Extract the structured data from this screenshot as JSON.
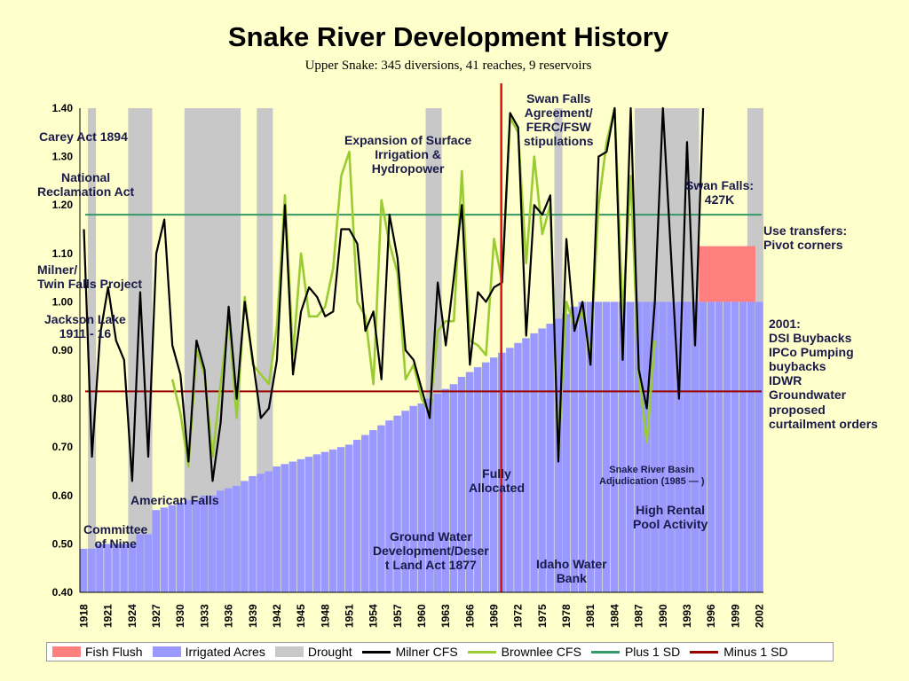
{
  "title": "Snake River Development History",
  "subtitle": "Upper Snake:  345 diversions, 41 reaches, 9 reservoirs",
  "colors": {
    "fish_flush": "#ff7f7f",
    "irrigated": "#9999ff",
    "drought": "#c8c8c8",
    "milner": "#000000",
    "brownlee": "#99cc33",
    "plus1sd": "#339966",
    "minus1sd": "#990000",
    "marker_1970": "#e01010",
    "annotation": "#1a1a4a"
  },
  "annotations": {
    "carey": "Carey Act 1894",
    "national": "National\nReclamation Act",
    "milner": "Milner/\nTwin Falls Project",
    "jackson": "Jackson Lake\n1911 - 16",
    "american": "American Falls",
    "committee": "Committee\nof Nine",
    "expansion": "Expansion of Surface\nIrrigation &\nHydropower",
    "groundwater": "Ground Water\nDevelopment/Deser\nt Land Act 1877",
    "fully": "Fully\nAllocated",
    "swanfalls_agreement": "Swan Falls\nAgreement/\nFERC/FSW\nstipulations",
    "swanfalls": "Swan Falls:\n427K",
    "use_transfers": "Use transfers:\nPivot corners",
    "y2001": "2001:\nDSI Buybacks\nIPCo Pumping\nbuybacks\nIDWR\nGroundwater\nproposed\ncurtailment orders",
    "srba": "Snake River Basin\nAdjudication (1985 — )",
    "rental": "High Rental\nPool Activity",
    "idaho_bank": "Idaho Water\nBank"
  },
  "legend": [
    {
      "label": "Fish Flush",
      "kind": "box",
      "color": "#ff7f7f"
    },
    {
      "label": "Irrigated Acres",
      "kind": "box",
      "color": "#9999ff"
    },
    {
      "label": "Drought",
      "kind": "box",
      "color": "#c8c8c8"
    },
    {
      "label": "Milner CFS",
      "kind": "line",
      "color": "#000000"
    },
    {
      "label": "Brownlee CFS",
      "kind": "line",
      "color": "#99cc33"
    },
    {
      "label": "Plus 1 SD",
      "kind": "line",
      "color": "#339966"
    },
    {
      "label": "Minus 1 SD",
      "kind": "line",
      "color": "#990000"
    }
  ],
  "chart_data": {
    "type": "bar",
    "x_ticks": [
      "1918",
      "1921",
      "1924",
      "1927",
      "1930",
      "1933",
      "1936",
      "1939",
      "1942",
      "1945",
      "1948",
      "1951",
      "1954",
      "1957",
      "1960",
      "1963",
      "1966",
      "1969",
      "1972",
      "1975",
      "1978",
      "1981",
      "1984",
      "1987",
      "1990",
      "1993",
      "1996",
      "1999",
      "2002"
    ],
    "ylim": [
      0.4,
      1.4
    ],
    "y_ticks": [
      "0.40",
      "0.50",
      "0.60",
      "0.70",
      "0.80",
      "0.90",
      "1.00",
      "1.10",
      "1.20",
      "1.30",
      "1.40"
    ],
    "grid": false,
    "legend_position": "bottom",
    "irrigated_acres": {
      "years_start": 1918,
      "values": [
        0.49,
        0.49,
        0.5,
        0.5,
        0.5,
        0.5,
        0.5,
        0.52,
        0.52,
        0.57,
        0.575,
        0.58,
        0.585,
        0.59,
        0.59,
        0.6,
        0.6,
        0.61,
        0.615,
        0.62,
        0.63,
        0.64,
        0.645,
        0.65,
        0.66,
        0.665,
        0.67,
        0.675,
        0.68,
        0.685,
        0.69,
        0.695,
        0.7,
        0.705,
        0.715,
        0.725,
        0.735,
        0.745,
        0.755,
        0.765,
        0.775,
        0.785,
        0.79,
        0.8,
        0.81,
        0.82,
        0.83,
        0.845,
        0.855,
        0.865,
        0.875,
        0.885,
        0.895,
        0.905,
        0.915,
        0.925,
        0.935,
        0.945,
        0.955,
        0.965,
        0.975,
        0.99,
        1.0,
        1.0,
        1.0,
        1.0,
        1.0,
        1.0,
        1.0,
        1.0,
        1.0,
        1.0,
        1.0,
        1.0,
        1.0,
        1.0,
        1.0,
        1.0,
        1.0,
        1.0,
        1.0,
        1.0,
        1.0,
        1.0,
        1.0
      ]
    },
    "fish_flush": {
      "start": 1995,
      "end": 2001,
      "value": 1.115
    },
    "drought_periods": [
      [
        1919,
        1919
      ],
      [
        1924,
        1926
      ],
      [
        1931,
        1937
      ],
      [
        1940,
        1941
      ],
      [
        1961,
        1962
      ],
      [
        1977,
        1977
      ],
      [
        1987,
        1994
      ],
      [
        2001,
        2002
      ]
    ],
    "series": [
      {
        "name": "Milner CFS",
        "x": [
          1918,
          1919,
          1920,
          1921,
          1922,
          1923,
          1924,
          1925,
          1926,
          1927,
          1928,
          1929,
          1930,
          1931,
          1932,
          1933,
          1934,
          1935,
          1936,
          1937,
          1938,
          1939,
          1940,
          1941,
          1942,
          1943,
          1944,
          1945,
          1946,
          1947,
          1948,
          1949,
          1950,
          1951,
          1952,
          1953,
          1954,
          1955,
          1956,
          1957,
          1958,
          1959,
          1960,
          1961,
          1962,
          1963,
          1964,
          1965,
          1966,
          1967,
          1968,
          1969,
          1970,
          1971,
          1972,
          1973,
          1974,
          1975,
          1976,
          1977,
          1978,
          1979,
          1980,
          1981,
          1982,
          1983,
          1984,
          1985,
          1986,
          1987,
          1988,
          1989,
          1990,
          1991,
          1992,
          1993,
          1994,
          1995
        ],
        "values": [
          1.15,
          0.68,
          0.93,
          1.03,
          0.92,
          0.88,
          0.63,
          1.02,
          0.68,
          1.1,
          1.17,
          0.91,
          0.85,
          0.67,
          0.92,
          0.86,
          0.63,
          0.75,
          0.99,
          0.8,
          1.0,
          0.88,
          0.76,
          0.78,
          0.88,
          1.2,
          0.85,
          0.98,
          1.03,
          1.01,
          0.97,
          0.98,
          1.15,
          1.15,
          1.12,
          0.94,
          0.98,
          0.84,
          1.18,
          1.09,
          0.9,
          0.88,
          0.82,
          0.76,
          1.04,
          0.91,
          1.05,
          1.2,
          0.87,
          1.02,
          1.0,
          1.03,
          1.04,
          1.39,
          1.36,
          0.93,
          1.2,
          1.18,
          1.22,
          0.67,
          1.13,
          0.94,
          1.0,
          0.87,
          1.3,
          1.31,
          1.4,
          0.88,
          1.4,
          0.86,
          0.78,
          1.0,
          1.4,
          1.1,
          0.8,
          1.33,
          0.91,
          1.4
        ]
      },
      {
        "name": "Brownlee CFS",
        "x": [
          1929,
          1930,
          1931,
          1932,
          1933,
          1934,
          1935,
          1936,
          1937,
          1938,
          1939,
          1940,
          1941,
          1942,
          1943,
          1944,
          1945,
          1946,
          1947,
          1948,
          1949,
          1950,
          1951,
          1952,
          1953,
          1954,
          1955,
          1956,
          1957,
          1958,
          1959,
          1960,
          1961,
          1962,
          1963,
          1964,
          1965,
          1966,
          1967,
          1968,
          1969,
          1970,
          1971,
          1972,
          1973,
          1974,
          1975,
          1976,
          1977,
          1978,
          1979,
          1980,
          1981,
          1982,
          1983,
          1984,
          1985,
          1986,
          1987,
          1988,
          1989
        ],
        "values": [
          0.84,
          0.77,
          0.66,
          0.9,
          0.85,
          0.68,
          0.83,
          0.97,
          0.76,
          1.01,
          0.87,
          0.85,
          0.83,
          0.95,
          1.22,
          0.89,
          1.1,
          0.97,
          0.97,
          0.99,
          1.07,
          1.26,
          1.31,
          1.0,
          0.97,
          0.83,
          1.21,
          1.12,
          1.06,
          0.84,
          0.87,
          0.8,
          0.77,
          0.94,
          0.96,
          0.96,
          1.27,
          0.92,
          0.91,
          0.89,
          1.13,
          1.04,
          1.38,
          1.35,
          1.08,
          1.3,
          1.14,
          1.2,
          0.68,
          1.0,
          0.95,
          0.98,
          0.89,
          1.2,
          1.33,
          1.4,
          0.97,
          1.26,
          0.85,
          0.71,
          0.92
        ]
      }
    ],
    "plus_1_sd": 1.18,
    "minus_1_sd": 0.815,
    "vertical_marker_year": 1970
  }
}
